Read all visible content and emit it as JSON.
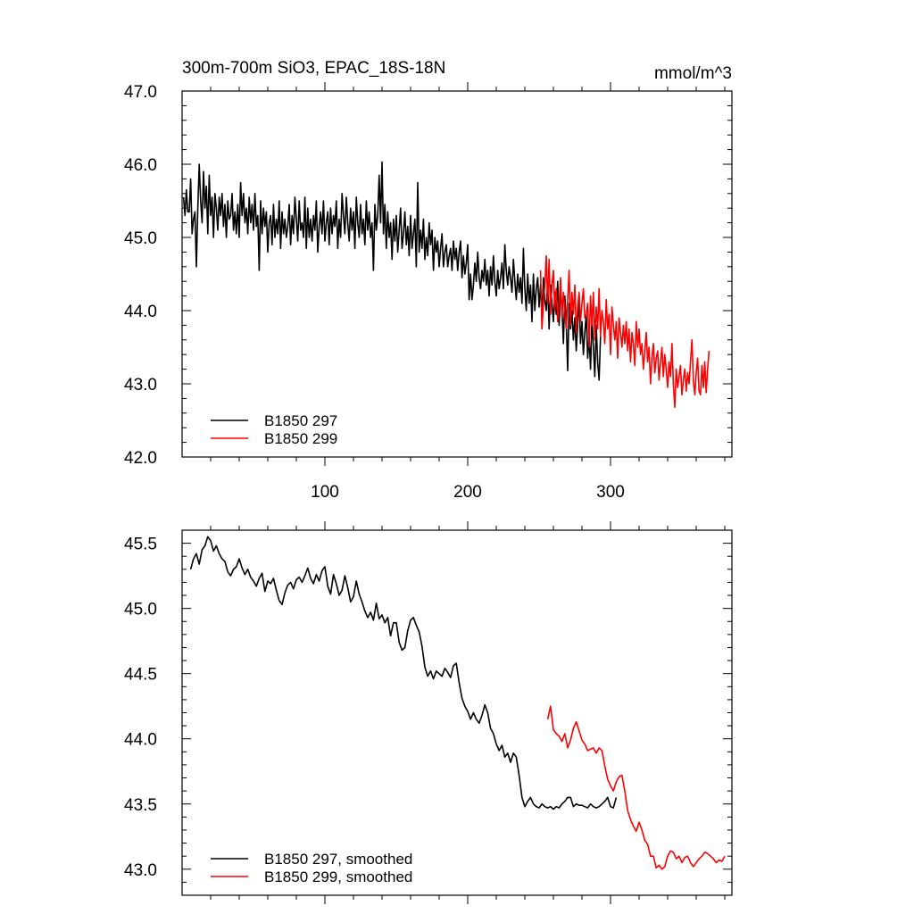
{
  "chart_data": [
    {
      "type": "line",
      "title": "300m-700m SiO3, EPAC_18S-18N",
      "units_label": "mmol/m^3",
      "xlim": [
        0,
        385
      ],
      "ylim": [
        42.0,
        47.0
      ],
      "x_ticks": [
        100,
        200,
        300
      ],
      "x_tick_labels": [
        "100",
        "200",
        "300"
      ],
      "y_ticks": [
        42.0,
        43.0,
        44.0,
        45.0,
        46.0,
        47.0
      ],
      "y_tick_labels": [
        "42.0",
        "43.0",
        "44.0",
        "45.0",
        "46.0",
        "47.0"
      ],
      "legend_position": "bottom-left",
      "series": [
        {
          "name": "B1850 297",
          "color": "#000000",
          "x_start": 1,
          "values": [
            45.55,
            45.3,
            45.65,
            45.35,
            45.35,
            45.8,
            45.05,
            45.25,
            45.35,
            44.6,
            45.4,
            46.0,
            45.5,
            45.2,
            45.9,
            45.4,
            45.7,
            45.05,
            45.85,
            45.3,
            45.55,
            45.0,
            45.6,
            45.4,
            45.1,
            45.55,
            45.3,
            45.6,
            45.15,
            45.45,
            45.0,
            45.5,
            45.25,
            45.3,
            45.6,
            45.1,
            45.35,
            45.05,
            45.45,
            45.0,
            45.75,
            45.3,
            45.6,
            45.2,
            45.4,
            45.05,
            45.55,
            45.2,
            45.45,
            45.1,
            45.6,
            45.15,
            45.3,
            44.55,
            45.5,
            45.05,
            45.4,
            45.15,
            45.35,
            44.8,
            45.2,
            45.3,
            44.9,
            45.45,
            45.0,
            45.25,
            45.05,
            45.5,
            44.85,
            45.35,
            45.05,
            45.25,
            45.0,
            45.15,
            45.45,
            44.9,
            45.3,
            45.05,
            45.55,
            45.25,
            44.95,
            45.5,
            45.1,
            45.2,
            45.0,
            45.55,
            44.85,
            45.4,
            45.0,
            45.25,
            44.95,
            45.3,
            45.1,
            45.5,
            44.8,
            45.15,
            45.35,
            45.05,
            45.5,
            44.95,
            45.2,
            45.35,
            44.9,
            45.4,
            45.05,
            45.3,
            45.15,
            45.5,
            44.85,
            45.25,
            45.0,
            45.6,
            45.3,
            45.05,
            45.55,
            45.2,
            44.95,
            45.4,
            45.1,
            45.35,
            44.85,
            45.55,
            45.2,
            45.0,
            45.45,
            45.05,
            45.25,
            44.9,
            45.5,
            45.1,
            45.35,
            45.0,
            45.2,
            44.55,
            45.45,
            45.1,
            45.3,
            45.85,
            45.2,
            46.03,
            45.05,
            45.45,
            44.85,
            45.35,
            45.0,
            45.2,
            44.7,
            45.25,
            44.95,
            45.3,
            44.8,
            45.1,
            45.4,
            44.85,
            45.05,
            45.35,
            44.9,
            45.15,
            44.75,
            45.3,
            44.85,
            45.05,
            45.25,
            44.6,
            45.75,
            44.8,
            45.1,
            44.85,
            45.25,
            44.7,
            45.0,
            44.75,
            45.2,
            44.9,
            45.1,
            44.55,
            45.0,
            44.8,
            44.95,
            44.6,
            44.85,
            45.05,
            44.6,
            44.8,
            44.9,
            44.6,
            44.75,
            44.85,
            44.55,
            44.95,
            44.7,
            44.85,
            44.55,
            44.8,
            44.95,
            44.45,
            44.75,
            44.5,
            44.65,
            44.9,
            44.15,
            44.5,
            44.15,
            44.35,
            44.65,
            44.4,
            44.8,
            44.45,
            44.3,
            44.55,
            44.4,
            44.7,
            44.35,
            44.55,
            44.2,
            44.6,
            44.35,
            44.75,
            44.4,
            44.2,
            44.55,
            44.3,
            44.45,
            44.65,
            44.3,
            44.9,
            44.55,
            44.35,
            44.6,
            44.45,
            44.25,
            44.7,
            44.4,
            44.15,
            44.5,
            44.25,
            44.45,
            44.1,
            44.85,
            44.3,
            44.0,
            44.5,
            44.1,
            44.35,
            43.85,
            44.5,
            44.0,
            44.3,
            44.45,
            44.05,
            44.35,
            43.9,
            44.45,
            44.15,
            44.0,
            44.4,
            43.75,
            44.35,
            44.1,
            43.85,
            44.25,
            43.95,
            44.4,
            43.8,
            44.3,
            44.05,
            43.55,
            44.2,
            43.85,
            43.18,
            44.1,
            43.75,
            44.0,
            43.6,
            43.9,
            43.45,
            43.8,
            44.2,
            43.55,
            43.85,
            43.4,
            43.7,
            43.95,
            43.35,
            43.65,
            43.2,
            43.9,
            43.5,
            43.1,
            43.8,
            43.3,
            43.05,
            43.65
          ]
        },
        {
          "name": "B1850 299",
          "color": "#ff0000",
          "x_start": 251,
          "values": [
            44.55,
            43.75,
            44.1,
            44.35,
            44.75,
            44.1,
            44.7,
            43.95,
            44.35,
            44.55,
            44.0,
            44.3,
            43.85,
            44.05,
            44.45,
            43.9,
            44.25,
            44.0,
            43.75,
            44.15,
            44.55,
            43.8,
            44.25,
            43.95,
            44.35,
            43.7,
            44.05,
            44.25,
            43.85,
            44.1,
            44.3,
            43.9,
            43.95,
            44.1,
            43.5,
            44.2,
            43.8,
            44.25,
            43.6,
            44.05,
            43.75,
            44.3,
            43.65,
            44.0,
            43.85,
            43.55,
            44.15,
            43.75,
            43.95,
            43.4,
            44.05,
            43.8,
            43.6,
            43.85,
            43.35,
            43.9,
            43.7,
            43.5,
            43.8,
            43.55,
            43.85,
            43.45,
            43.75,
            43.3,
            43.7,
            43.55,
            43.25,
            43.85,
            43.5,
            43.75,
            43.4,
            43.55,
            43.2,
            43.45,
            43.7,
            43.3,
            43.5,
            43.0,
            43.35,
            43.55,
            43.15,
            43.35,
            43.45,
            43.05,
            43.3,
            43.5,
            43.1,
            43.4,
            43.2,
            42.95,
            43.3,
            43.1,
            43.55,
            43.0,
            42.68,
            43.2,
            42.95,
            43.1,
            43.25,
            42.85,
            43.05,
            43.2,
            42.9,
            43.15,
            43.0,
            43.3,
            43.6,
            43.05,
            42.85,
            43.15,
            43.35,
            42.9,
            42.85,
            43.25,
            42.95,
            43.3,
            42.88,
            43.2,
            43.45
          ]
        }
      ]
    },
    {
      "type": "line",
      "xlim": [
        0,
        385
      ],
      "ylim": [
        42.8,
        45.6
      ],
      "y_ticks": [
        43.0,
        43.5,
        44.0,
        44.5,
        45.0,
        45.5
      ],
      "y_tick_labels": [
        "43.0",
        "43.5",
        "44.0",
        "44.5",
        "45.0",
        "45.5"
      ],
      "legend_position": "bottom-left",
      "series": [
        {
          "name": "B1850 297, smoothed",
          "color": "#000000",
          "x": [
            6,
            8,
            10,
            12,
            14,
            16,
            18,
            20,
            22,
            24,
            26,
            28,
            30,
            32,
            34,
            36,
            38,
            40,
            42,
            44,
            46,
            48,
            50,
            52,
            54,
            56,
            58,
            60,
            62,
            64,
            66,
            68,
            70,
            72,
            74,
            76,
            78,
            80,
            82,
            84,
            86,
            88,
            90,
            92,
            94,
            96,
            98,
            100,
            102,
            104,
            106,
            108,
            110,
            112,
            114,
            116,
            118,
            120,
            122,
            124,
            126,
            128,
            130,
            132,
            134,
            136,
            138,
            140,
            142,
            144,
            146,
            148,
            150,
            152,
            154,
            156,
            158,
            160,
            162,
            164,
            166,
            168,
            170,
            172,
            174,
            176,
            178,
            180,
            182,
            184,
            186,
            188,
            190,
            192,
            194,
            196,
            198,
            200,
            202,
            204,
            206,
            208,
            210,
            212,
            214,
            216,
            218,
            220,
            222,
            224,
            226,
            228,
            230,
            232,
            234,
            236,
            238,
            240,
            242,
            244,
            246,
            248,
            250,
            252,
            254,
            256,
            258,
            260,
            262,
            264,
            266,
            268,
            270,
            272,
            274,
            276,
            278,
            280,
            282,
            284,
            286,
            288,
            290,
            292,
            294,
            296,
            298,
            300,
            302,
            304
          ],
          "values": [
            45.3,
            45.38,
            45.42,
            45.34,
            45.45,
            45.48,
            45.55,
            45.52,
            45.44,
            45.48,
            45.42,
            45.38,
            45.36,
            45.28,
            45.25,
            45.3,
            45.32,
            45.38,
            45.31,
            45.26,
            45.3,
            45.24,
            45.21,
            45.17,
            45.23,
            45.27,
            45.13,
            45.21,
            45.19,
            45.23,
            45.14,
            45.06,
            45.03,
            45.12,
            45.18,
            45.2,
            45.15,
            45.22,
            45.24,
            45.2,
            45.25,
            45.31,
            45.23,
            45.19,
            45.26,
            45.21,
            45.29,
            45.32,
            45.17,
            45.11,
            45.26,
            45.19,
            45.1,
            45.14,
            45.25,
            45.16,
            45.05,
            45.09,
            45.21,
            45.11,
            45.05,
            44.98,
            44.93,
            44.97,
            44.91,
            45.04,
            44.92,
            44.95,
            44.89,
            44.93,
            44.79,
            44.89,
            44.89,
            44.74,
            44.68,
            44.7,
            44.83,
            44.91,
            44.93,
            44.87,
            44.82,
            44.71,
            44.55,
            44.48,
            44.52,
            44.46,
            44.52,
            44.5,
            44.48,
            44.54,
            44.51,
            44.47,
            44.56,
            44.58,
            44.43,
            44.31,
            44.25,
            44.21,
            44.15,
            44.2,
            44.15,
            44.12,
            44.18,
            44.26,
            44.2,
            44.08,
            44.04,
            43.96,
            43.91,
            43.95,
            43.86,
            43.89,
            43.82,
            43.89,
            43.86,
            43.72,
            43.55,
            43.48,
            43.52,
            43.55,
            43.5,
            43.48,
            43.47,
            43.5,
            43.48,
            43.47,
            43.48,
            43.46,
            43.48,
            43.47,
            43.5,
            43.52,
            43.55,
            43.55,
            43.48,
            43.5,
            43.49,
            43.49,
            43.48,
            43.47,
            43.5,
            43.48,
            43.47,
            43.48,
            43.5,
            43.52,
            43.55,
            43.48,
            43.47,
            43.55
          ]
        },
        {
          "name": "B1850 299, smoothed",
          "color": "#ff0000",
          "x": [
            256,
            258,
            260,
            262,
            264,
            266,
            268,
            270,
            272,
            274,
            276,
            278,
            280,
            282,
            284,
            286,
            288,
            290,
            292,
            294,
            296,
            298,
            300,
            302,
            304,
            306,
            308,
            310,
            312,
            314,
            316,
            318,
            320,
            322,
            324,
            326,
            328,
            330,
            332,
            334,
            336,
            338,
            340,
            342,
            344,
            346,
            348,
            350,
            352,
            354,
            356,
            358,
            360,
            362,
            364,
            366,
            368,
            370,
            372,
            374,
            376,
            378,
            380
          ],
          "values": [
            44.15,
            44.25,
            44.07,
            44.04,
            44.02,
            43.98,
            44.04,
            43.93,
            43.99,
            44.08,
            44.13,
            44.06,
            43.99,
            43.96,
            43.91,
            43.92,
            43.93,
            43.89,
            43.93,
            43.91,
            43.79,
            43.69,
            43.64,
            43.6,
            43.67,
            43.71,
            43.72,
            43.6,
            43.45,
            43.38,
            43.33,
            43.29,
            43.36,
            43.3,
            43.22,
            43.19,
            43.1,
            43.1,
            43.01,
            43.03,
            43.0,
            43.02,
            43.1,
            43.14,
            43.13,
            43.08,
            43.1,
            43.05,
            43.09,
            43.1,
            43.05,
            43.02,
            43.05,
            43.08,
            43.1,
            43.13,
            43.12,
            43.1,
            43.08,
            43.05,
            43.07,
            43.06,
            43.1
          ]
        }
      ]
    }
  ]
}
